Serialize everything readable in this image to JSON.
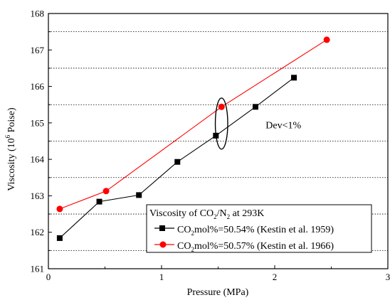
{
  "chart_data": {
    "type": "line",
    "xlabel": "Pressure (MPa)",
    "ylabel": "Viscosity (10",
    "ylabel_sup": "6",
    "ylabel_suffix": " Poise)",
    "xlim": [
      0,
      3
    ],
    "ylim": [
      161,
      168
    ],
    "x_ticks": [
      0,
      1,
      2,
      3
    ],
    "y_ticks": [
      161,
      162,
      163,
      164,
      165,
      166,
      167,
      168
    ],
    "reference_lines": [
      161.5,
      162.5,
      163.5,
      164.5,
      165.5,
      166.5,
      167.5
    ],
    "grid": false,
    "series": [
      {
        "name": "CO2mol%=50.54% (Kestin et al. 1959)",
        "color": "#000000",
        "marker": "square",
        "x": [
          0.1,
          0.45,
          0.8,
          1.14,
          1.48,
          1.83,
          2.17
        ],
        "y": [
          161.84,
          162.84,
          163.02,
          163.93,
          164.65,
          165.44,
          166.24
        ]
      },
      {
        "name": "CO2mol%=50.57% (Kestin et al. 1966)",
        "color": "#ff0000",
        "marker": "circle",
        "x": [
          0.1,
          0.51,
          1.53,
          2.46
        ],
        "y": [
          162.64,
          163.13,
          165.44,
          167.28
        ]
      }
    ],
    "annotation": {
      "text": "Dev<1%",
      "x": 1.92,
      "y": 164.85
    },
    "highlight_ellipse": {
      "cx": 1.53,
      "cy": 164.98,
      "rx": 0.055,
      "ry": 0.7
    },
    "legend": {
      "placement": "bottom-right",
      "title": "Viscosity of CO",
      "title_sub": "2",
      "title_mid": "/N",
      "title_sub2": "2",
      "title_end": " at 293K",
      "entries": [
        {
          "pre": "CO",
          "sub": "2",
          "post": "mol%=50.54% (Kestin et al. 1959)"
        },
        {
          "pre": "CO",
          "sub": "2",
          "post": "mol%=50.57% (Kestin et al. 1966)"
        }
      ]
    }
  }
}
